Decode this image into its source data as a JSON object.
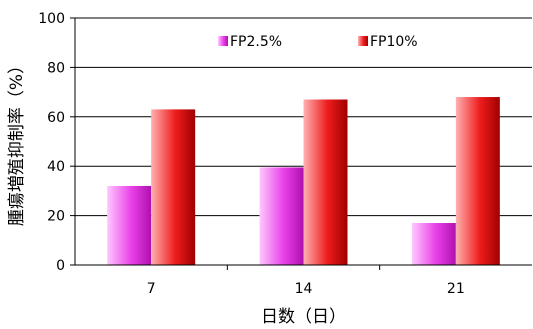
{
  "chart_data": {
    "type": "bar",
    "title": "",
    "xlabel": "日数（日）",
    "ylabel": "腫瘍増殖抑制率（%）",
    "categories": [
      "7",
      "14",
      "21"
    ],
    "series": [
      {
        "name": "FP2.5%",
        "values": [
          32,
          39.5,
          17
        ],
        "color": "#e840e8"
      },
      {
        "name": "FP10%",
        "values": [
          63,
          67,
          68
        ],
        "color": "#ee1c1c"
      }
    ],
    "ylim": [
      0,
      100
    ],
    "yticks": [
      0,
      20,
      40,
      60,
      80,
      100
    ],
    "grid": true,
    "legend": "top-center"
  }
}
